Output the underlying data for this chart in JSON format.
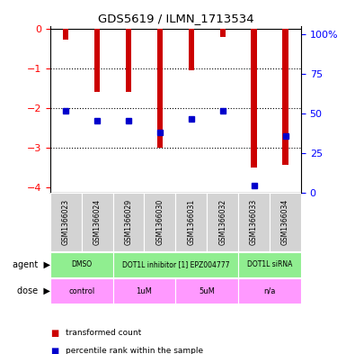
{
  "title": "GDS5619 / ILMN_1713534",
  "samples": [
    "GSM1366023",
    "GSM1366024",
    "GSM1366029",
    "GSM1366030",
    "GSM1366031",
    "GSM1366032",
    "GSM1366033",
    "GSM1366034"
  ],
  "bar_values": [
    -0.28,
    -1.6,
    -1.6,
    -3.02,
    -1.05,
    -0.22,
    -3.52,
    -3.45
  ],
  "percentile_values": [
    -2.08,
    -2.32,
    -2.32,
    -2.62,
    -2.28,
    -2.08,
    -3.97,
    -2.72
  ],
  "ylim_left": [
    -4.15,
    0.05
  ],
  "ylim_right": [
    0,
    105
  ],
  "y_ticks_left": [
    0,
    -1,
    -2,
    -3,
    -4
  ],
  "y_ticks_right": [
    0,
    25,
    50,
    75,
    100
  ],
  "bar_color": "#cc0000",
  "percentile_color": "#0000cc",
  "sample_col_color": "#d3d3d3",
  "agent_groups": [
    {
      "label": "DMSO",
      "start": 0,
      "end": 2
    },
    {
      "label": "DOT1L inhibitor [1] EPZ004777",
      "start": 2,
      "end": 6
    },
    {
      "label": "DOT1L siRNA",
      "start": 6,
      "end": 8
    }
  ],
  "dose_groups": [
    {
      "label": "control",
      "start": 0,
      "end": 2
    },
    {
      "label": "1uM",
      "start": 2,
      "end": 4
    },
    {
      "label": "5uM",
      "start": 4,
      "end": 6
    },
    {
      "label": "n/a",
      "start": 6,
      "end": 8
    }
  ],
  "agent_color": "#90ee90",
  "dose_color": "#ff99ff",
  "legend_items": [
    {
      "color": "#cc0000",
      "label": "transformed count"
    },
    {
      "color": "#0000cc",
      "label": "percentile rank within the sample"
    }
  ],
  "bar_width": 0.18
}
